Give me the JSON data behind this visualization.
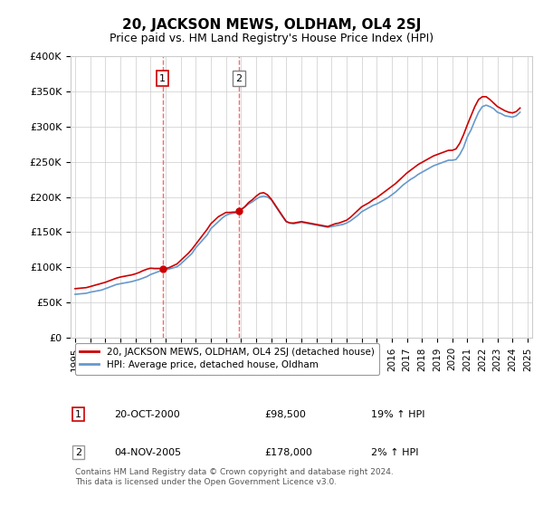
{
  "title": "20, JACKSON MEWS, OLDHAM, OL4 2SJ",
  "subtitle": "Price paid vs. HM Land Registry's House Price Index (HPI)",
  "legend_line1": "20, JACKSON MEWS, OLDHAM, OL4 2SJ (detached house)",
  "legend_line2": "HPI: Average price, detached house, Oldham",
  "transaction1_label": "1",
  "transaction1_date": "20-OCT-2000",
  "transaction1_price": "£98,500",
  "transaction1_hpi": "19% ↑ HPI",
  "transaction2_label": "2",
  "transaction2_date": "04-NOV-2005",
  "transaction2_price": "£178,000",
  "transaction2_hpi": "2% ↑ HPI",
  "footer": "Contains HM Land Registry data © Crown copyright and database right 2024.\nThis data is licensed under the Open Government Licence v3.0.",
  "red_color": "#cc0000",
  "blue_color": "#6699cc",
  "dashed_color": "#ff6666",
  "grid_color": "#cccccc",
  "bg_color": "#ffffff",
  "ylim": [
    0,
    400000
  ],
  "yticks": [
    0,
    50000,
    100000,
    150000,
    200000,
    250000,
    300000,
    350000,
    400000
  ],
  "ytick_labels": [
    "£0",
    "£50K",
    "£100K",
    "£150K",
    "£200K",
    "£250K",
    "£300K",
    "£350K",
    "£400K"
  ],
  "transaction1_x": 2000.8,
  "transaction2_x": 2005.84,
  "hpi_years": [
    1995,
    1995.25,
    1995.5,
    1995.75,
    1996,
    1996.25,
    1996.5,
    1996.75,
    1997,
    1997.25,
    1997.5,
    1997.75,
    1998,
    1998.25,
    1998.5,
    1998.75,
    1999,
    1999.25,
    1999.5,
    1999.75,
    2000,
    2000.25,
    2000.5,
    2000.75,
    2001,
    2001.25,
    2001.5,
    2001.75,
    2002,
    2002.25,
    2002.5,
    2002.75,
    2003,
    2003.25,
    2003.5,
    2003.75,
    2004,
    2004.25,
    2004.5,
    2004.75,
    2005,
    2005.25,
    2005.5,
    2005.75,
    2006,
    2006.25,
    2006.5,
    2006.75,
    2007,
    2007.25,
    2007.5,
    2007.75,
    2008,
    2008.25,
    2008.5,
    2008.75,
    2009,
    2009.25,
    2009.5,
    2009.75,
    2010,
    2010.25,
    2010.5,
    2010.75,
    2011,
    2011.25,
    2011.5,
    2011.75,
    2012,
    2012.25,
    2012.5,
    2012.75,
    2013,
    2013.25,
    2013.5,
    2013.75,
    2014,
    2014.25,
    2014.5,
    2014.75,
    2015,
    2015.25,
    2015.5,
    2015.75,
    2016,
    2016.25,
    2016.5,
    2016.75,
    2017,
    2017.25,
    2017.5,
    2017.75,
    2018,
    2018.25,
    2018.5,
    2018.75,
    2019,
    2019.25,
    2019.5,
    2019.75,
    2020,
    2020.25,
    2020.5,
    2020.75,
    2021,
    2021.25,
    2021.5,
    2021.75,
    2022,
    2022.25,
    2022.5,
    2022.75,
    2023,
    2023.25,
    2023.5,
    2023.75,
    2024,
    2024.25,
    2024.5
  ],
  "hpi_values": [
    62000,
    62500,
    63000,
    63500,
    65000,
    66000,
    67000,
    68000,
    70000,
    72000,
    74000,
    76000,
    77000,
    78000,
    79000,
    80000,
    81500,
    83000,
    85000,
    87000,
    90000,
    92000,
    94000,
    96000,
    97000,
    98000,
    99500,
    101000,
    105000,
    110000,
    115000,
    120000,
    128000,
    134000,
    140000,
    146000,
    155000,
    160000,
    165000,
    170000,
    174000,
    176000,
    177000,
    178000,
    182000,
    186000,
    190000,
    193000,
    197000,
    200000,
    201000,
    200000,
    196000,
    188000,
    180000,
    172000,
    165000,
    163000,
    162000,
    163000,
    164000,
    163000,
    162000,
    161000,
    160000,
    159000,
    158000,
    157000,
    158000,
    159000,
    160000,
    161000,
    163000,
    166000,
    170000,
    174000,
    179000,
    182000,
    185000,
    188000,
    190000,
    193000,
    196000,
    199000,
    203000,
    207000,
    212000,
    217000,
    221000,
    225000,
    228000,
    232000,
    235000,
    238000,
    241000,
    244000,
    246000,
    248000,
    250000,
    252000,
    252000,
    253000,
    260000,
    270000,
    285000,
    295000,
    308000,
    320000,
    328000,
    330000,
    328000,
    325000,
    320000,
    318000,
    315000,
    314000,
    313000,
    315000,
    320000
  ],
  "property_years": [
    1995,
    1995.25,
    1995.5,
    1995.75,
    1996,
    1996.25,
    1996.5,
    1996.75,
    1997,
    1997.25,
    1997.5,
    1997.75,
    1998,
    1998.25,
    1998.5,
    1998.75,
    1999,
    1999.25,
    1999.5,
    1999.75,
    2000,
    2000.25,
    2000.5,
    2000.75,
    2001,
    2001.25,
    2001.5,
    2001.75,
    2002,
    2002.25,
    2002.5,
    2002.75,
    2003,
    2003.25,
    2003.5,
    2003.75,
    2004,
    2004.25,
    2004.5,
    2004.75,
    2005,
    2005.25,
    2005.5,
    2005.75,
    2006,
    2006.25,
    2006.5,
    2006.75,
    2007,
    2007.25,
    2007.5,
    2007.75,
    2008,
    2008.25,
    2008.5,
    2008.75,
    2009,
    2009.25,
    2009.5,
    2009.75,
    2010,
    2010.25,
    2010.5,
    2010.75,
    2011,
    2011.25,
    2011.5,
    2011.75,
    2012,
    2012.25,
    2012.5,
    2012.75,
    2013,
    2013.25,
    2013.5,
    2013.75,
    2014,
    2014.25,
    2014.5,
    2014.75,
    2015,
    2015.25,
    2015.5,
    2015.75,
    2016,
    2016.25,
    2016.5,
    2016.75,
    2017,
    2017.25,
    2017.5,
    2017.75,
    2018,
    2018.25,
    2018.5,
    2018.75,
    2019,
    2019.25,
    2019.5,
    2019.75,
    2020,
    2020.25,
    2020.5,
    2020.75,
    2021,
    2021.25,
    2021.5,
    2021.75,
    2022,
    2022.25,
    2022.5,
    2022.75,
    2023,
    2023.25,
    2023.5,
    2023.75,
    2024,
    2024.25,
    2024.5
  ],
  "property_values": [
    70000,
    70500,
    71000,
    71500,
    73000,
    74500,
    76000,
    77500,
    79000,
    81000,
    83000,
    85000,
    86500,
    87500,
    88500,
    89500,
    91000,
    93000,
    95500,
    97500,
    99000,
    98500,
    98500,
    98500,
    98500,
    100000,
    102500,
    105000,
    110000,
    115000,
    120000,
    126000,
    133000,
    140000,
    147000,
    154000,
    162000,
    167000,
    172000,
    175000,
    178000,
    178000,
    178500,
    178500,
    182000,
    186000,
    192000,
    196000,
    201000,
    205000,
    206000,
    203000,
    197000,
    189000,
    181000,
    173000,
    165000,
    163000,
    163000,
    164000,
    165000,
    164000,
    163000,
    162000,
    161000,
    160000,
    159000,
    158000,
    160000,
    162000,
    163000,
    165000,
    167000,
    171000,
    176000,
    181000,
    186000,
    189000,
    192000,
    196000,
    199000,
    203000,
    207000,
    211000,
    215000,
    219000,
    224000,
    229000,
    234000,
    238000,
    242000,
    246000,
    249000,
    252000,
    255000,
    258000,
    260000,
    262000,
    264000,
    266000,
    266000,
    268000,
    276000,
    288000,
    302000,
    315000,
    328000,
    338000,
    342000,
    342000,
    338000,
    333000,
    328000,
    325000,
    322000,
    320000,
    319000,
    321000,
    326000
  ]
}
